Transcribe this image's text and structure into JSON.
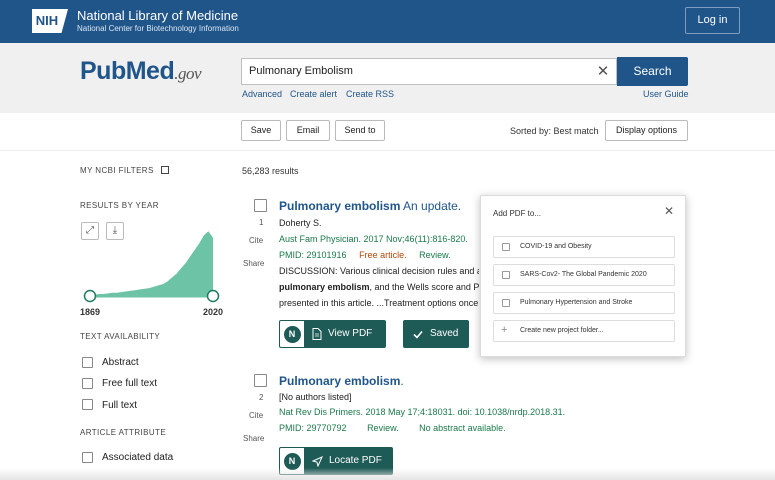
{
  "header": {
    "nih_badge": "NIH",
    "title": "National Library of Medicine",
    "subtitle": "National Center for Biotechnology Information",
    "login_label": "Log in"
  },
  "search": {
    "logo_main": "PubMed",
    "logo_suffix": ".gov",
    "query": "Pulmonary Embolism",
    "button_label": "Search",
    "links": [
      "Advanced",
      "Create alert",
      "Create RSS"
    ],
    "user_guide": "User Guide"
  },
  "actions": {
    "save_label": "Save",
    "email_label": "Email",
    "send_to_label": "Send to",
    "sorted_by": "Sorted by: Best match",
    "display_options": "Display options"
  },
  "sidebar": {
    "my_filters": "MY NCBI FILTERS",
    "results_by_year": "RESULTS BY YEAR",
    "year_start": "1869",
    "year_end": "2020",
    "histogram_levels": [
      0.02,
      0.02,
      0.03,
      0.03,
      0.04,
      0.05,
      0.05,
      0.06,
      0.07,
      0.08,
      0.09,
      0.1,
      0.11,
      0.12,
      0.14,
      0.16,
      0.18,
      0.22,
      0.28,
      0.34,
      0.42,
      0.5,
      0.6,
      0.7,
      0.8,
      0.92,
      0.98,
      0.88
    ],
    "text_availability": "TEXT AVAILABILITY",
    "text_filters": [
      "Abstract",
      "Free full text",
      "Full text"
    ],
    "article_attribute": "ARTICLE ATTRIBUTE",
    "attribute_filters": [
      "Associated data"
    ]
  },
  "results": {
    "count": "56,283 results",
    "items": [
      {
        "number": "1",
        "title_bold": "Pulmonary embolism",
        "title_rest": " An update.",
        "authors": "Doherty S.",
        "citation": "Aust Fam Physician. 2017 Nov;46(11):816-820.",
        "pmid": "PMID: 29101916",
        "free": "Free article.",
        "type": "Review.",
        "snippet1": "DISCUSSION: Various clinical decision rules and al",
        "snippet2_bold": "pulmonary embolism",
        "snippet2_rest": ", and the Wells score and Pu",
        "snippet3": "presented in this article. ...Treatment options once",
        "cite": "Cite",
        "share": "Share",
        "pdf_label": "View PDF",
        "saved_label": "Saved"
      },
      {
        "number": "2",
        "title_bold": "Pulmonary embolism",
        "title_rest": ".",
        "authors": "[No authors listed]",
        "citation": "Nat Rev Dis Primers. 2018 May 17;4:18031. doi: 10.1038/nrdp.2018.31.",
        "pmid": "PMID: 29770792",
        "type": "Review.",
        "no_abstract": "No abstract available.",
        "cite": "Cite",
        "share": "Share",
        "pdf_label": "Locate PDF"
      }
    ]
  },
  "popup": {
    "title": "Add PDF to...",
    "items": [
      "COVID-19 and Obesity",
      "SARS-Cov2- The Global Pandemic 2020",
      "Pulmonary Hypertension and Stroke"
    ],
    "create_label": "Create new project folder..."
  },
  "colors": {
    "nih_blue": "#20558a",
    "teal": "#1e5a56",
    "histogram": "#6cc3a6"
  }
}
